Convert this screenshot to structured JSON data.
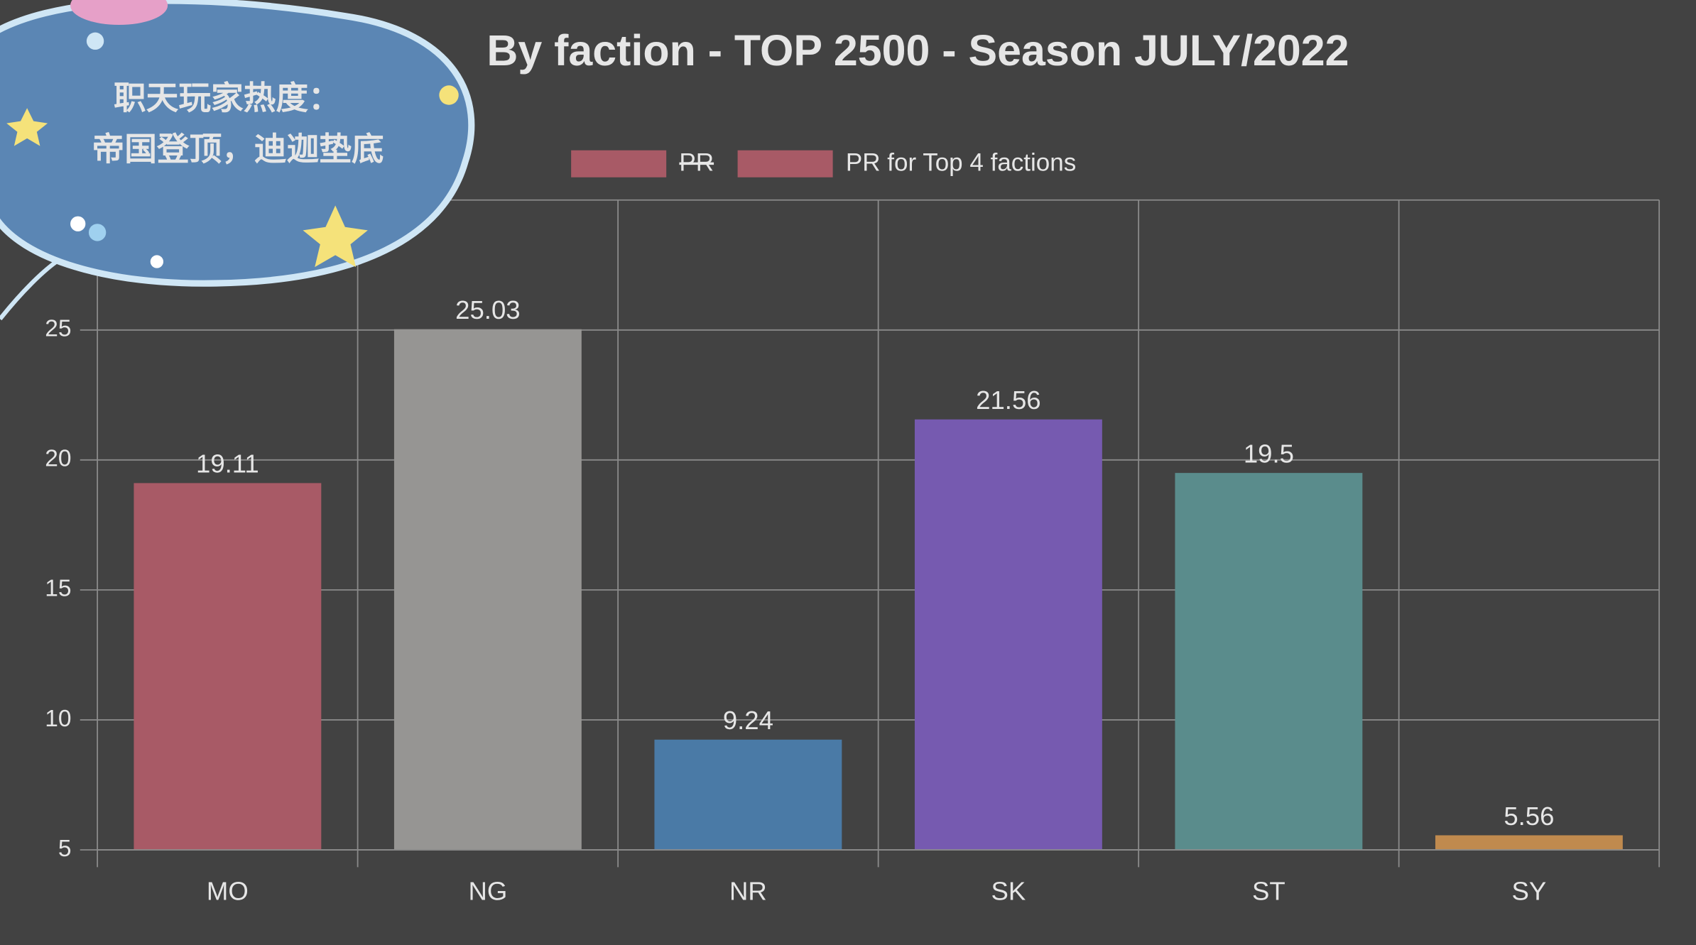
{
  "chart_data": {
    "type": "bar",
    "title": "By faction - TOP 2500 - Season JULY/2022",
    "annotation": [
      "职天玩家热度：",
      "帝国登顶，迪迦垫底"
    ],
    "legend": [
      {
        "name": "PR",
        "color": "#a85a66",
        "struck": true
      },
      {
        "name": "PR for Top 4 factions",
        "color": "#a85a66"
      }
    ],
    "categories": [
      "MO",
      "NG",
      "NR",
      "SK",
      "ST",
      "SY"
    ],
    "values": [
      19.11,
      25.03,
      9.24,
      21.56,
      19.5,
      5.56
    ],
    "colors": [
      "#a85a66",
      "#969593",
      "#4a7aa6",
      "#765ab0",
      "#5a8c8c",
      "#c08a4e"
    ],
    "ylim": [
      5,
      30
    ],
    "yticks": [
      5,
      10,
      15,
      20,
      25
    ],
    "grid": true
  }
}
